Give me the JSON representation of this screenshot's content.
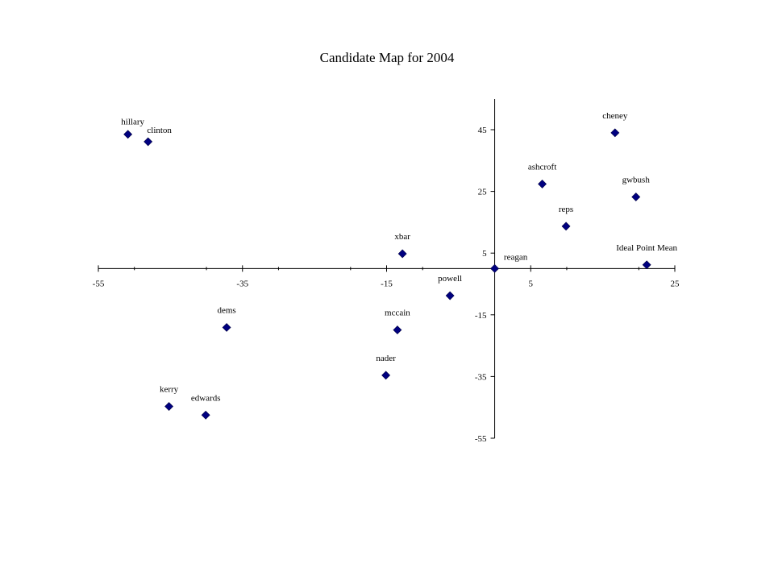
{
  "chart_data": {
    "type": "scatter",
    "title": "Candidate Map for 2004",
    "xlabel": "",
    "ylabel": "",
    "xlim": [
      -55,
      25
    ],
    "ylim": [
      -55,
      55
    ],
    "x_ticks": [
      -55,
      -35,
      -15,
      5,
      25
    ],
    "y_ticks": [
      45,
      25,
      5,
      -15,
      -35,
      -55
    ],
    "grid": false,
    "legend": "none",
    "marker_color": "#000080",
    "points": [
      {
        "label": "hillary",
        "x": -50.9,
        "y": 43.5
      },
      {
        "label": "clinton",
        "x": -48.1,
        "y": 41.1
      },
      {
        "label": "cheney",
        "x": 16.7,
        "y": 44.0
      },
      {
        "label": "ashcroft",
        "x": 6.6,
        "y": 27.4
      },
      {
        "label": "gwbush",
        "x": 19.6,
        "y": 23.2
      },
      {
        "label": "reps",
        "x": 9.9,
        "y": 13.7
      },
      {
        "label": "xbar",
        "x": -12.8,
        "y": 4.8
      },
      {
        "label": "reagan",
        "x": 0.0,
        "y": 0.0
      },
      {
        "label": "Ideal Point Mean",
        "x": 21.1,
        "y": 1.2
      },
      {
        "label": "powell",
        "x": -6.2,
        "y": -8.8
      },
      {
        "label": "dems",
        "x": -37.2,
        "y": -19.1
      },
      {
        "label": "mccain",
        "x": -13.5,
        "y": -19.9
      },
      {
        "label": "nader",
        "x": -15.1,
        "y": -34.6
      },
      {
        "label": "kerry",
        "x": -45.2,
        "y": -44.7
      },
      {
        "label": "edwards",
        "x": -40.1,
        "y": -47.5
      }
    ]
  }
}
